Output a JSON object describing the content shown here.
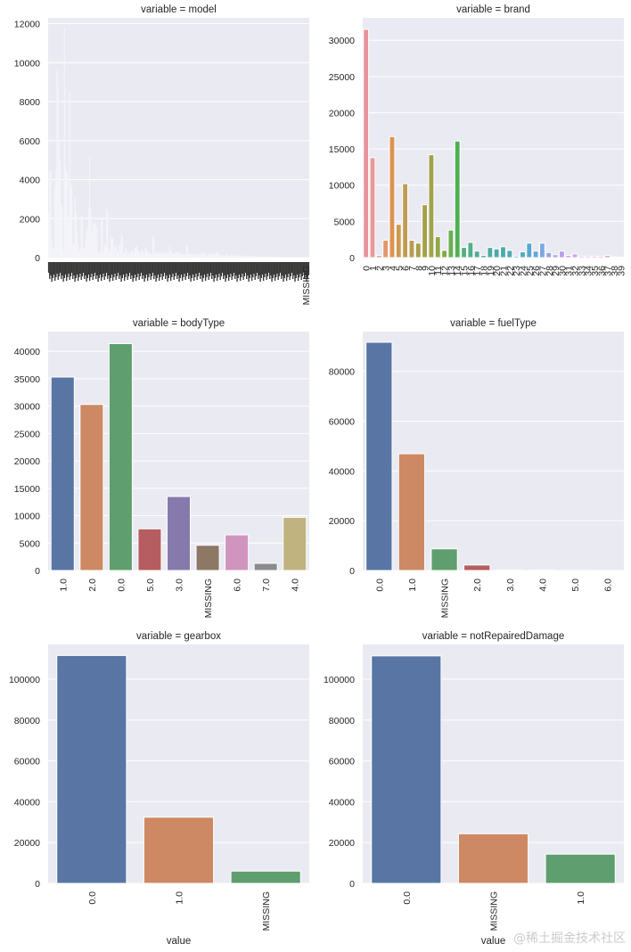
{
  "figure": {
    "background": "#ffffff",
    "axes_background": "#eaeaf2",
    "grid_color": "#ffffff",
    "watermark": "@稀土掘金技术社区"
  },
  "chart_data": [
    {
      "type": "bar",
      "title": "variable = model",
      "xlabel": "",
      "ylabel": "",
      "ylim": [
        0,
        12300
      ],
      "yticks": [
        0,
        2000,
        4000,
        6000,
        8000,
        10000,
        12000
      ],
      "grid": true,
      "bar_color": "#f4f4fa",
      "categories_note": "~248 overlapping model codes, last label MISSING",
      "last_label": "MISSING",
      "values": [
        2300,
        4500,
        4400,
        900,
        500,
        400,
        3700,
        4500,
        9600,
        8800,
        6000,
        5000,
        2700,
        2600,
        400,
        11800,
        4700,
        4400,
        4300,
        1900,
        8500,
        3800,
        3600,
        800,
        700,
        3100,
        2300,
        1400,
        800,
        300,
        500,
        2200,
        2100,
        500,
        400,
        900,
        1500,
        1400,
        2600,
        5200,
        2500,
        1300,
        1800,
        1700,
        1800,
        1700,
        1500,
        300,
        200,
        300,
        2000,
        1900,
        300,
        700,
        600,
        2500,
        2300,
        400,
        300,
        1100,
        1000,
        1000,
        600,
        500,
        600,
        400,
        300,
        700,
        600,
        1200,
        1100,
        300,
        200,
        500,
        400,
        300,
        200,
        300,
        250,
        400,
        350,
        200,
        500,
        600,
        550,
        400,
        300,
        200,
        400,
        350,
        300,
        200,
        500,
        400,
        300,
        200,
        250,
        200,
        150,
        1100,
        1000,
        200,
        300,
        250,
        200,
        300,
        250,
        200,
        200,
        300,
        250,
        200,
        250,
        300,
        250,
        600,
        400,
        300,
        200,
        200,
        250,
        300,
        200,
        300,
        250,
        200,
        200,
        200,
        150,
        200,
        150,
        600,
        550,
        200,
        150,
        200,
        200,
        150,
        150,
        200,
        150,
        200,
        150,
        150,
        200,
        150,
        300,
        250,
        200,
        150,
        100,
        150,
        150,
        250,
        200,
        150,
        200,
        150,
        150,
        300,
        250,
        200,
        150,
        150,
        100,
        150,
        100,
        100,
        150,
        200,
        150,
        100,
        100,
        150,
        100,
        100,
        150,
        100,
        100,
        100,
        150,
        100,
        100,
        100,
        80,
        100,
        80,
        100,
        80,
        80,
        80,
        100,
        80,
        80,
        60,
        80,
        60,
        80,
        60,
        60,
        60,
        60,
        50,
        60,
        50,
        50,
        60,
        50,
        50,
        40,
        50,
        40,
        40,
        50,
        40,
        40,
        40,
        30,
        40,
        30,
        30,
        30,
        30,
        30,
        30,
        25,
        25,
        25,
        20,
        20,
        20,
        20,
        20,
        20,
        15,
        15,
        15,
        15,
        15,
        10,
        10,
        10,
        10,
        10,
        10,
        10,
        10,
        5
      ]
    },
    {
      "type": "bar",
      "title": "variable = brand",
      "xlabel": "",
      "ylabel": "",
      "ylim": [
        0,
        33100
      ],
      "yticks": [
        0,
        5000,
        10000,
        15000,
        20000,
        25000,
        30000
      ],
      "grid": true,
      "categories": [
        "0",
        "1",
        "2",
        "3",
        "4",
        "5",
        "6",
        "7",
        "8",
        "9",
        "10",
        "11",
        "12",
        "13",
        "14",
        "15",
        "16",
        "17",
        "18",
        "19",
        "20",
        "21",
        "22",
        "23",
        "24",
        "25",
        "26",
        "27",
        "28",
        "29",
        "30",
        "31",
        "32",
        "33",
        "34",
        "35",
        "36",
        "37",
        "38",
        "39"
      ],
      "values": [
        31500,
        13800,
        300,
        2400,
        16700,
        4600,
        10200,
        2400,
        2000,
        7300,
        14200,
        2900,
        1000,
        3800,
        16100,
        1400,
        2100,
        900,
        300,
        1400,
        1200,
        1500,
        1000,
        200,
        800,
        2000,
        900,
        2000,
        700,
        400,
        900,
        300,
        500,
        200,
        200,
        200,
        200,
        300,
        100,
        50
      ],
      "colors": [
        "#e8949c",
        "#e8989a",
        "#e89a86",
        "#e2976a",
        "#dc9350",
        "#cd9a52",
        "#c09c52",
        "#b59e50",
        "#aa9f4c",
        "#a6a04a",
        "#a0a34c",
        "#92a64c",
        "#80aa4e",
        "#6cae52",
        "#4eb054",
        "#55b07a",
        "#52b08a",
        "#50ae94",
        "#4eac9c",
        "#4eaca0",
        "#4eaaa8",
        "#4ea9ae",
        "#50a9b4",
        "#52a8ba",
        "#54a8c2",
        "#58a8ce",
        "#66a6d8",
        "#7ea8e0",
        "#92a6e2",
        "#a8a2e6",
        "#b6a2e8",
        "#c4a0e8",
        "#cfa0e8",
        "#d8a0e6",
        "#dea0e0",
        "#e29ed8",
        "#e69ccc",
        "#e89ac0",
        "#e89ab4",
        "#e89aa8"
      ]
    },
    {
      "type": "bar",
      "title": "variable = bodyType",
      "xlabel": "",
      "ylabel": "",
      "ylim": [
        0,
        43600
      ],
      "yticks": [
        0,
        5000,
        10000,
        15000,
        20000,
        25000,
        30000,
        35000,
        40000
      ],
      "grid": true,
      "categories": [
        "1.0",
        "2.0",
        "0.0",
        "5.0",
        "3.0",
        "MISSING",
        "6.0",
        "7.0",
        "4.0"
      ],
      "values": [
        35300,
        30300,
        41400,
        7600,
        13500,
        4600,
        6500,
        1300,
        9700
      ],
      "colors": [
        "#5875a4",
        "#cc8963",
        "#5f9e6e",
        "#b55d60",
        "#857aab",
        "#8d7866",
        "#d095bf",
        "#8c8c8c",
        "#c1b37f"
      ]
    },
    {
      "type": "bar",
      "title": "variable = fuelType",
      "xlabel": "",
      "ylabel": "",
      "ylim": [
        0,
        96000
      ],
      "yticks": [
        0,
        20000,
        40000,
        60000,
        80000
      ],
      "grid": true,
      "categories": [
        "0.0",
        "1.0",
        "MISSING",
        "2.0",
        "3.0",
        "4.0",
        "5.0",
        "6.0"
      ],
      "values": [
        91700,
        46900,
        8700,
        2200,
        250,
        120,
        45,
        35
      ],
      "colors": [
        "#5875a4",
        "#cc8963",
        "#5f9e6e",
        "#b55d60",
        "#857aab",
        "#8d7866",
        "#d095bf",
        "#8c8c8c"
      ]
    },
    {
      "type": "bar",
      "title": "variable = gearbox",
      "xlabel": "value",
      "ylabel": "",
      "ylim": [
        0,
        117000
      ],
      "yticks": [
        0,
        20000,
        40000,
        60000,
        80000,
        100000
      ],
      "grid": true,
      "categories": [
        "0.0",
        "1.0",
        "MISSING"
      ],
      "values": [
        111600,
        32400,
        6000
      ],
      "colors": [
        "#5875a4",
        "#cc8963",
        "#5f9e6e"
      ]
    },
    {
      "type": "bar",
      "title": "variable = notRepairedDamage",
      "xlabel": "value",
      "ylabel": "",
      "ylim": [
        0,
        117000
      ],
      "yticks": [
        0,
        20000,
        40000,
        60000,
        80000,
        100000
      ],
      "grid": true,
      "categories": [
        "0.0",
        "MISSING",
        "1.0"
      ],
      "values": [
        111400,
        24300,
        14300
      ],
      "colors": [
        "#5875a4",
        "#cc8963",
        "#5f9e6e"
      ]
    }
  ]
}
